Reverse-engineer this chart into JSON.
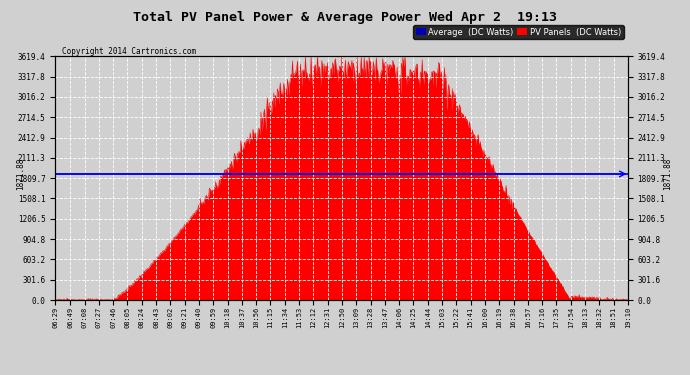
{
  "title": "Total PV Panel Power & Average Power Wed Apr 2  19:13",
  "copyright": "Copyright 2014 Cartronics.com",
  "avg_value": 1871.88,
  "y_max": 3619.4,
  "y_ticks": [
    0.0,
    301.6,
    603.2,
    904.8,
    1206.5,
    1508.1,
    1809.7,
    2111.3,
    2412.9,
    2714.5,
    3016.2,
    3317.8,
    3619.4
  ],
  "background_color": "#d0d0d0",
  "plot_bg_color": "#d0d0d0",
  "fill_color": "#ff0000",
  "line_color": "#ff0000",
  "avg_line_color": "#0000ff",
  "title_color": "#000000",
  "legend_avg_color": "#0000bb",
  "legend_pv_color": "#ff0000",
  "x_times": [
    "06:29",
    "06:49",
    "07:08",
    "07:27",
    "07:46",
    "08:05",
    "08:24",
    "08:43",
    "09:02",
    "09:21",
    "09:40",
    "09:59",
    "10:18",
    "10:37",
    "10:56",
    "11:15",
    "11:34",
    "11:53",
    "12:12",
    "12:31",
    "12:50",
    "13:09",
    "13:28",
    "13:47",
    "14:06",
    "14:25",
    "14:44",
    "15:03",
    "15:22",
    "15:41",
    "16:00",
    "16:19",
    "16:38",
    "16:57",
    "17:16",
    "17:35",
    "17:54",
    "18:13",
    "18:32",
    "18:51",
    "19:10"
  ],
  "grid_color": "#ffffff",
  "grid_style": "--",
  "font_family": "monospace"
}
